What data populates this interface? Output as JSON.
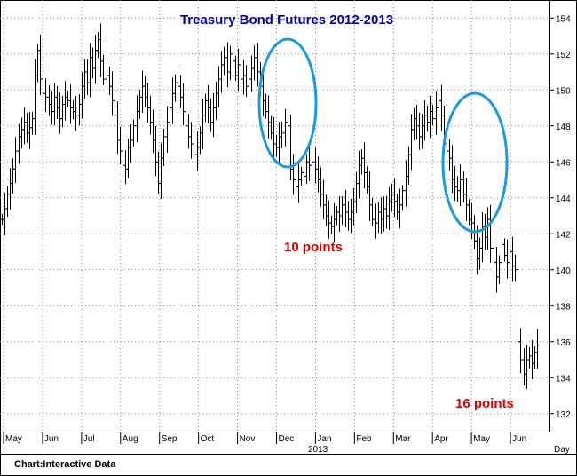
{
  "chart_data": {
    "type": "ohlc",
    "title": "Treasury Bond Futures 2012-2013",
    "footer": "Chart:Interactive Data",
    "y_axis": {
      "min": 131,
      "max": 155,
      "ticks": [
        132,
        134,
        136,
        138,
        140,
        142,
        144,
        146,
        148,
        150,
        152,
        154
      ],
      "side": "right"
    },
    "x_axis": {
      "months": [
        "May",
        "Jun",
        "Jul",
        "Aug",
        "Sep",
        "Oct",
        "Nov",
        "Dec",
        "Jan",
        "Feb",
        "Mar",
        "Apr",
        "May",
        "Jun"
      ],
      "year_label": "2013",
      "unit_label": "Day"
    },
    "grid": "dotted",
    "series_color": "#000000",
    "annotation_color": "#dd0000",
    "ellipse_color": "#1a9ae0",
    "annotations": [
      "10 points",
      "16 points"
    ],
    "close_values": [
      142.8,
      143.4,
      144.2,
      144.8,
      145.6,
      146.6,
      147.4,
      147.8,
      148.2,
      147.6,
      147.9,
      148.4,
      150.8,
      152.2,
      150.6,
      149.8,
      149.6,
      149.2,
      148.8,
      149.6,
      149.0,
      148.4,
      149.2,
      149.6,
      149.4,
      149.0,
      148.8,
      148.6,
      149.2,
      150.2,
      151.0,
      150.4,
      151.8,
      151.2,
      152.2,
      152.8,
      151.6,
      150.6,
      150.8,
      150.2,
      149.4,
      148.6,
      147.2,
      146.6,
      145.8,
      145.6,
      146.8,
      147.2,
      148.0,
      148.8,
      149.6,
      150.2,
      149.6,
      149.0,
      148.2,
      147.2,
      146.0,
      144.8,
      146.2,
      147.4,
      148.2,
      149.0,
      149.8,
      150.4,
      150.2,
      149.6,
      148.8,
      148.0,
      147.4,
      147.0,
      146.4,
      146.8,
      147.6,
      148.6,
      149.4,
      149.0,
      148.2,
      149.0,
      149.8,
      150.6,
      151.4,
      151.8,
      151.0,
      152.0,
      151.6,
      150.8,
      151.4,
      150.6,
      150.8,
      150.2,
      150.6,
      151.2,
      151.8,
      151.0,
      150.2,
      149.4,
      148.8,
      148.2,
      147.6,
      147.0,
      146.8,
      147.4,
      147.6,
      148.2,
      148.0,
      145.6,
      145.0,
      144.6,
      145.0,
      145.4,
      145.2,
      146.0,
      145.8,
      146.0,
      145.6,
      145.0,
      144.2,
      143.6,
      143.0,
      142.6,
      142.4,
      142.8,
      143.2,
      143.0,
      143.6,
      143.2,
      142.8,
      143.2,
      143.8,
      144.8,
      145.8,
      146.2,
      145.4,
      144.6,
      143.6,
      142.8,
      142.6,
      143.2,
      142.8,
      143.4,
      143.0,
      143.8,
      144.2,
      143.8,
      143.2,
      143.6,
      144.4,
      145.2,
      146.4,
      147.8,
      148.4,
      148.0,
      147.4,
      148.0,
      148.6,
      148.2,
      148.8,
      148.4,
      149.0,
      149.4,
      148.6,
      147.0,
      146.6,
      146.2,
      145.0,
      144.6,
      144.4,
      145.0,
      144.2,
      143.6,
      142.8,
      142.6,
      141.6,
      140.6,
      141.2,
      142.4,
      141.8,
      142.8,
      141.2,
      140.4,
      139.6,
      140.4,
      141.4,
      140.8,
      140.4,
      141.0,
      140.2,
      140.0,
      136.0,
      135.0,
      134.2,
      135.0,
      135.2,
      134.8,
      135.4,
      135.8
    ]
  }
}
